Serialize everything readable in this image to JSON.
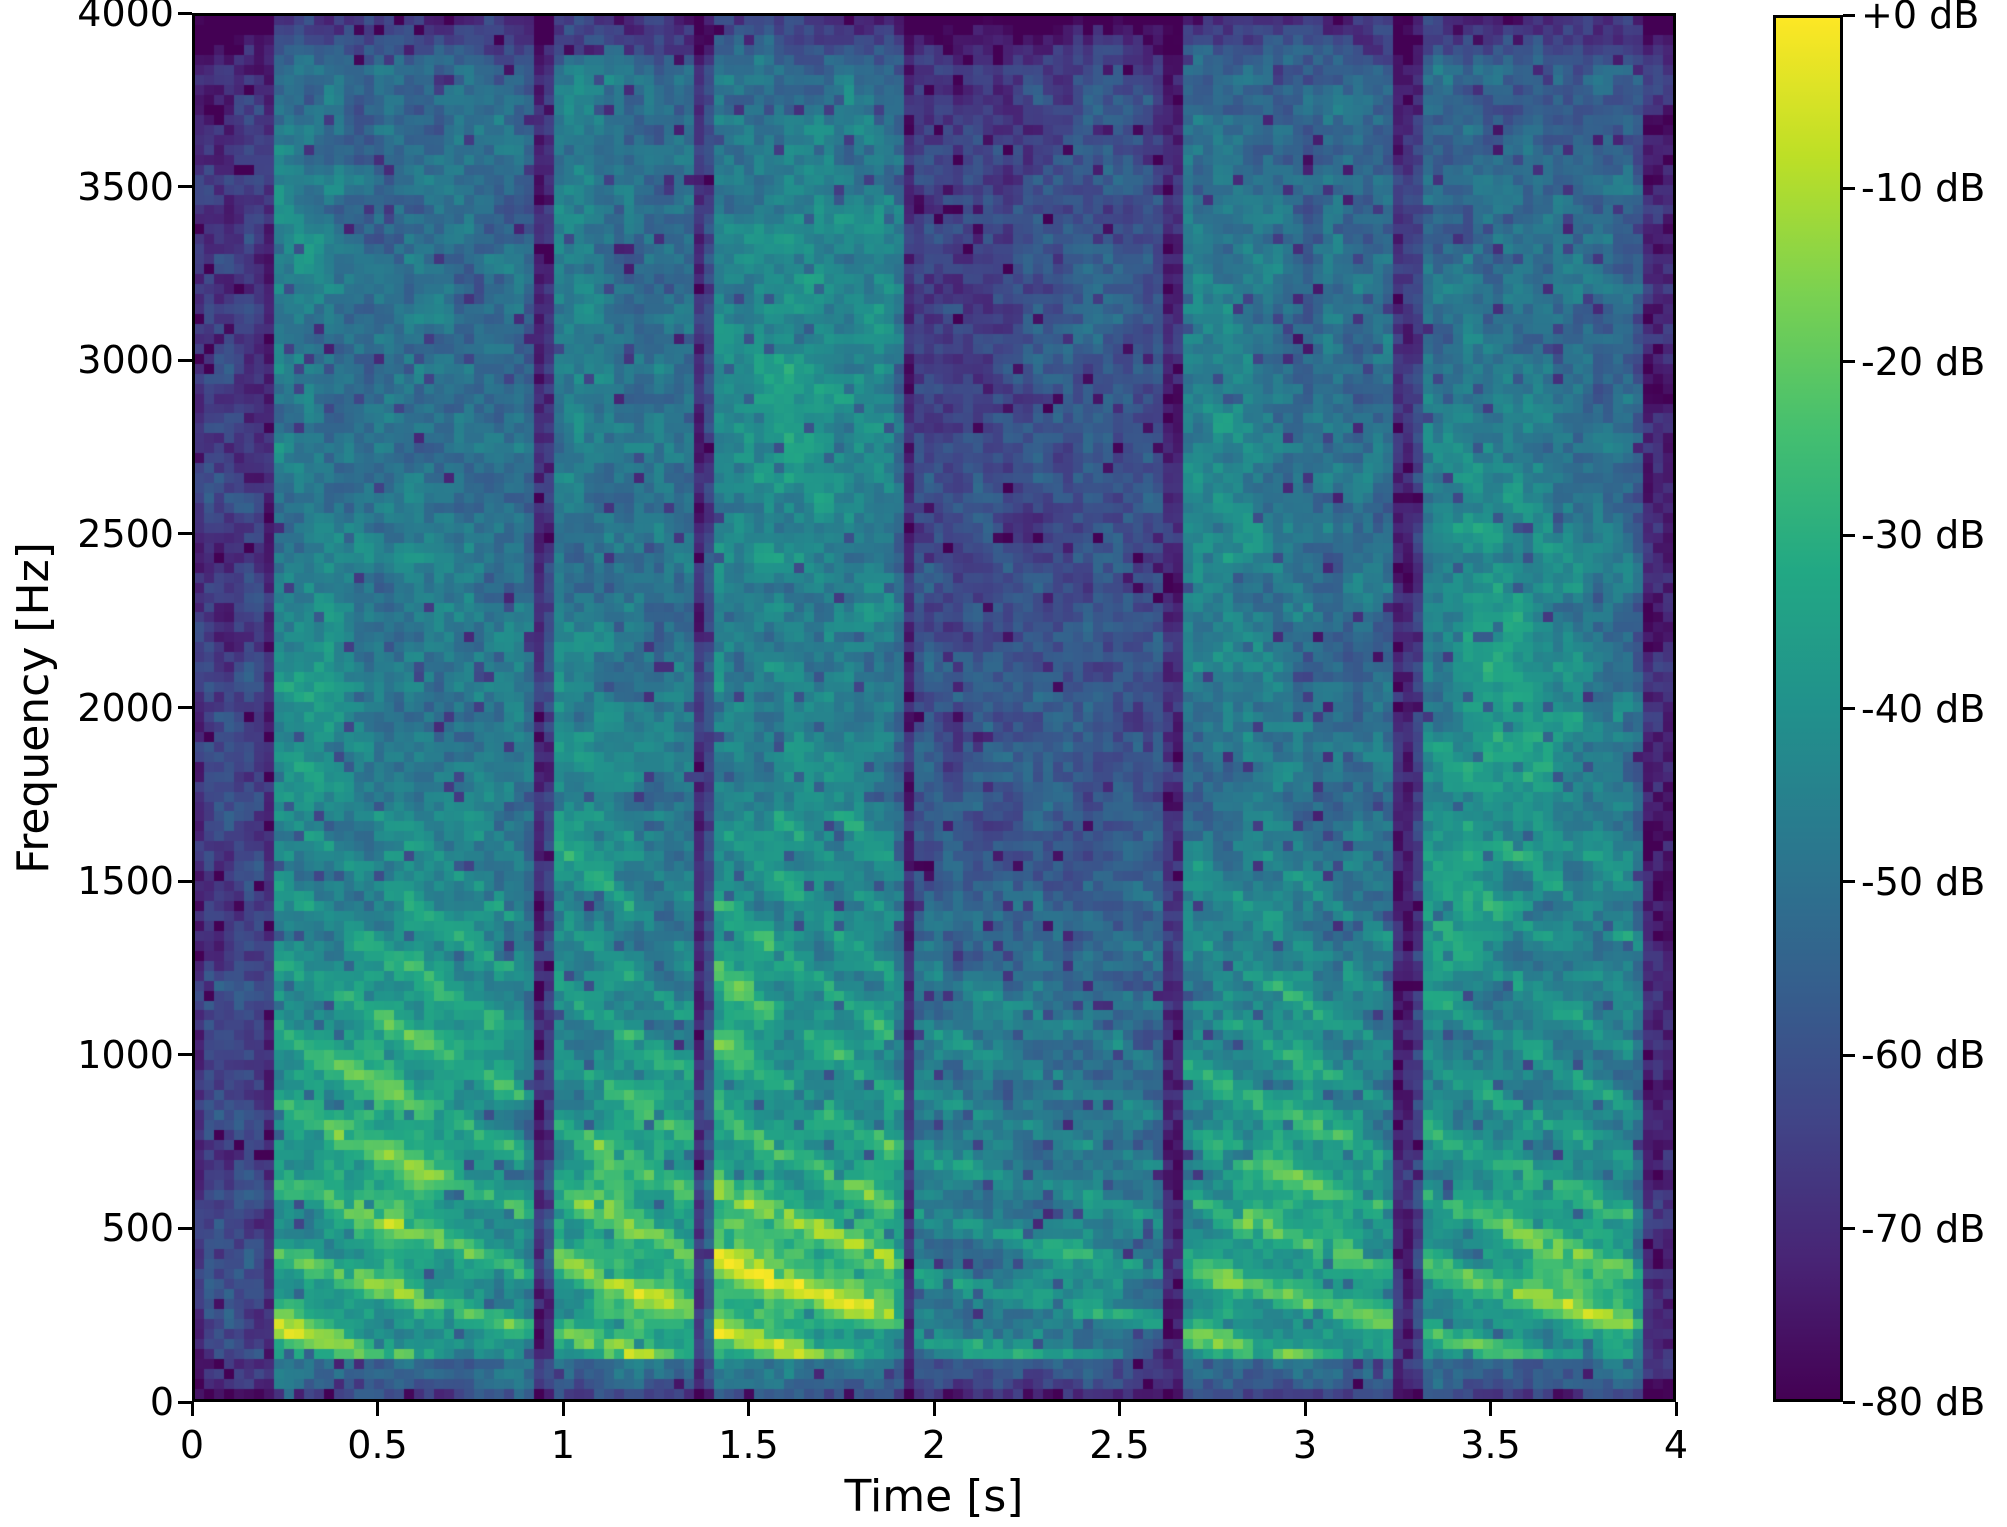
{
  "figure": {
    "background": "#ffffff",
    "axis_color": "#000000",
    "text_color": "#000000"
  },
  "chart_data": {
    "type": "heatmap",
    "subtype": "spectrogram",
    "title": "",
    "xlabel": "Time [s]",
    "ylabel": "Frequency [Hz]",
    "xlim": [
      0,
      4
    ],
    "ylim": [
      0,
      4000
    ],
    "grid": false,
    "xticks": {
      "values": [
        0,
        0.5,
        1,
        1.5,
        2,
        2.5,
        3,
        3.5,
        4
      ],
      "labels": [
        "0",
        "0.5",
        "1",
        "1.5",
        "2",
        "2.5",
        "3",
        "3.5",
        "4"
      ]
    },
    "yticks": {
      "values": [
        0,
        500,
        1000,
        1500,
        2000,
        2500,
        3000,
        3500,
        4000
      ],
      "labels": [
        "0",
        "500",
        "1000",
        "1500",
        "2000",
        "2500",
        "3000",
        "3500",
        "4000"
      ]
    },
    "colorbar": {
      "position": "right",
      "vmax_db": 0,
      "vmin_db": -80,
      "tick_values_db": [
        0,
        -10,
        -20,
        -30,
        -40,
        -50,
        -60,
        -70,
        -80
      ],
      "tick_labels": [
        "+0 dB",
        "-10 dB",
        "-20 dB",
        "-30 dB",
        "-40 dB",
        "-50 dB",
        "-60 dB",
        "-70 dB",
        "-80 dB"
      ]
    },
    "colormap": {
      "name": "viridis",
      "stops": [
        {
          "pos": 0.0,
          "color": "#440154"
        },
        {
          "pos": 0.1,
          "color": "#482475"
        },
        {
          "pos": 0.2,
          "color": "#414487"
        },
        {
          "pos": 0.3,
          "color": "#355f8d"
        },
        {
          "pos": 0.4,
          "color": "#2a788e"
        },
        {
          "pos": 0.5,
          "color": "#21918c"
        },
        {
          "pos": 0.6,
          "color": "#22a884"
        },
        {
          "pos": 0.7,
          "color": "#44bf70"
        },
        {
          "pos": 0.8,
          "color": "#7ad151"
        },
        {
          "pos": 0.9,
          "color": "#bddf26"
        },
        {
          "pos": 1.0,
          "color": "#fde725"
        }
      ]
    },
    "spectrogram": {
      "time_bins": 148,
      "freq_bins": 139,
      "noise_floor_db": -71,
      "noise_fine_db": 11,
      "noise_blob_db": 13,
      "speckle_prob": 0.045,
      "speckle_drop_db": 16,
      "top_fade_hz": 3850,
      "bottom_fade_hz": 60,
      "segments": [
        {
          "name": "lead-in-silence",
          "t0": 0.0,
          "t1": 0.2,
          "base_db": -63,
          "hf_tilt_db": 5,
          "harm_top_hz": 0,
          "harm_gain_db": 0,
          "sp0_hz": 200,
          "sp1_hz": 200,
          "slide": 0,
          "onset_db": 0
        },
        {
          "name": "utterance-1",
          "t0": 0.2,
          "t1": 0.93,
          "base_db": -43,
          "hf_tilt_db": 10,
          "harm_top_hz": 1700,
          "harm_gain_db": 14,
          "sp0_hz": 215,
          "sp1_hz": 165,
          "slide": 1.1,
          "onset_db": 6
        },
        {
          "name": "utterance-2",
          "t0": 0.95,
          "t1": 1.37,
          "base_db": -44,
          "hf_tilt_db": 10,
          "harm_top_hz": 1700,
          "harm_gain_db": 14,
          "sp0_hz": 205,
          "sp1_hz": 165,
          "slide": 1.2,
          "onset_db": 6
        },
        {
          "name": "utterance-3",
          "t0": 1.38,
          "t1": 1.93,
          "base_db": -42,
          "hf_tilt_db": 8,
          "harm_top_hz": 1700,
          "harm_gain_db": 16,
          "sp0_hz": 210,
          "sp1_hz": 160,
          "slide": 1.1,
          "onset_db": 7
        },
        {
          "name": "weak-passage",
          "t0": 1.93,
          "t1": 2.64,
          "base_db": -52,
          "hf_tilt_db": 15,
          "harm_top_hz": 1500,
          "harm_gain_db": 10,
          "sp0_hz": 180,
          "sp1_hz": 150,
          "slide": 0.8,
          "onset_db": 0
        },
        {
          "name": "utterance-4",
          "t0": 2.66,
          "t1": 3.26,
          "base_db": -46,
          "hf_tilt_db": 8,
          "harm_top_hz": 1600,
          "harm_gain_db": 13,
          "sp0_hz": 195,
          "sp1_hz": 155,
          "slide": 1.0,
          "onset_db": 6
        },
        {
          "name": "utterance-5",
          "t0": 3.3,
          "t1": 3.93,
          "base_db": -45,
          "hf_tilt_db": 9,
          "harm_top_hz": 1600,
          "harm_gain_db": 13,
          "sp0_hz": 200,
          "sp1_hz": 155,
          "slide": 1.1,
          "onset_db": 5
        }
      ],
      "formants": [
        {
          "tc": 0.25,
          "fc": 200,
          "dt": 0.05,
          "df": 120,
          "gain_db": 12
        },
        {
          "tc": 0.3,
          "fc": 2050,
          "dt": 0.1,
          "df": 250,
          "gain_db": 10
        },
        {
          "tc": 0.28,
          "fc": 3300,
          "dt": 0.1,
          "df": 350,
          "gain_db": 7
        },
        {
          "tc": 0.55,
          "fc": 480,
          "dt": 0.12,
          "df": 180,
          "gain_db": 13
        },
        {
          "tc": 0.62,
          "fc": 1150,
          "dt": 0.15,
          "df": 250,
          "gain_db": 9
        },
        {
          "tc": 0.45,
          "fc": 800,
          "dt": 0.2,
          "df": 200,
          "gain_db": 8
        },
        {
          "tc": 1.05,
          "fc": 1750,
          "dt": 0.08,
          "df": 300,
          "gain_db": 8
        },
        {
          "tc": 1.12,
          "fc": 480,
          "dt": 0.1,
          "df": 160,
          "gain_db": 13
        },
        {
          "tc": 1.2,
          "fc": 750,
          "dt": 0.12,
          "df": 200,
          "gain_db": 10
        },
        {
          "tc": 1.05,
          "fc": 3400,
          "dt": 0.1,
          "df": 400,
          "gain_db": 7
        },
        {
          "tc": 1.18,
          "fc": 250,
          "dt": 0.1,
          "df": 120,
          "gain_db": 11
        },
        {
          "tc": 1.45,
          "fc": 1200,
          "dt": 0.07,
          "df": 200,
          "gain_db": 13
        },
        {
          "tc": 1.47,
          "fc": 500,
          "dt": 0.09,
          "df": 160,
          "gain_db": 15
        },
        {
          "tc": 1.55,
          "fc": 300,
          "dt": 0.15,
          "df": 130,
          "gain_db": 12
        },
        {
          "tc": 1.62,
          "fc": 2950,
          "dt": 0.18,
          "df": 350,
          "gain_db": 10
        },
        {
          "tc": 1.75,
          "fc": 500,
          "dt": 0.12,
          "df": 170,
          "gain_db": 10
        },
        {
          "tc": 1.85,
          "fc": 330,
          "dt": 0.1,
          "df": 130,
          "gain_db": 9
        },
        {
          "tc": 2.0,
          "fc": 800,
          "dt": 0.1,
          "df": 250,
          "gain_db": 7
        },
        {
          "tc": 2.45,
          "fc": 3300,
          "dt": 0.12,
          "df": 600,
          "gain_db": 7
        },
        {
          "tc": 2.4,
          "fc": 350,
          "dt": 0.15,
          "df": 150,
          "gain_db": 9
        },
        {
          "tc": 2.2,
          "fc": 1100,
          "dt": 0.2,
          "df": 300,
          "gain_db": 5
        },
        {
          "tc": 2.8,
          "fc": 2700,
          "dt": 0.12,
          "df": 450,
          "gain_db": 9
        },
        {
          "tc": 2.82,
          "fc": 400,
          "dt": 0.1,
          "df": 160,
          "gain_db": 12
        },
        {
          "tc": 2.95,
          "fc": 900,
          "dt": 0.12,
          "df": 250,
          "gain_db": 9
        },
        {
          "tc": 3.1,
          "fc": 550,
          "dt": 0.12,
          "df": 200,
          "gain_db": 10
        },
        {
          "tc": 3.15,
          "fc": 200,
          "dt": 0.1,
          "df": 120,
          "gain_db": 10
        },
        {
          "tc": 3.5,
          "fc": 2450,
          "dt": 0.12,
          "df": 400,
          "gain_db": 9
        },
        {
          "tc": 3.62,
          "fc": 1900,
          "dt": 0.15,
          "df": 350,
          "gain_db": 9
        },
        {
          "tc": 3.6,
          "fc": 480,
          "dt": 0.12,
          "df": 180,
          "gain_db": 12
        },
        {
          "tc": 3.75,
          "fc": 380,
          "dt": 0.1,
          "df": 150,
          "gain_db": 12
        },
        {
          "tc": 3.85,
          "fc": 200,
          "dt": 0.08,
          "df": 120,
          "gain_db": 10
        },
        {
          "tc": 3.4,
          "fc": 1500,
          "dt": 0.1,
          "df": 300,
          "gain_db": 8
        }
      ]
    }
  }
}
